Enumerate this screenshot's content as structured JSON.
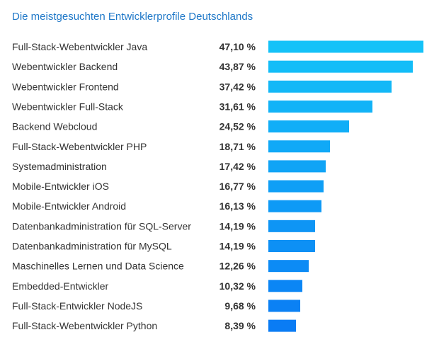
{
  "chart_data": {
    "type": "bar",
    "orientation": "horizontal",
    "title": "Die meistgesuchten Entwicklerprofile Deutschlands",
    "categories": [
      "Full-Stack-Webentwickler Java",
      "Webentwickler Backend",
      "Webentwickler Frontend",
      "Webentwickler Full-Stack",
      "Backend Webcloud",
      "Full-Stack-Webentwickler PHP",
      "Systemadministration",
      "Mobile-Entwickler iOS",
      "Mobile-Entwickler Android",
      "Datenbankadministration für SQL-Server",
      "Datenbankadministration für MySQL",
      "Maschinelles Lernen und Data Science",
      "Embedded-Entwickler",
      "Full-Stack-Entwickler NodeJS",
      "Full-Stack-Webentwickler Python"
    ],
    "values": [
      47.1,
      43.87,
      37.42,
      31.61,
      24.52,
      18.71,
      17.42,
      16.77,
      16.13,
      14.19,
      14.19,
      12.26,
      10.32,
      9.68,
      8.39
    ],
    "value_labels": [
      "47,10 %",
      "43,87 %",
      "37,42 %",
      "31,61 %",
      "24,52 %",
      "18,71 %",
      "17,42 %",
      "16,77 %",
      "16,13 %",
      "14,19 %",
      "14,19 %",
      "12,26 %",
      "10,32 %",
      "9,68 %",
      "8,39 %"
    ],
    "colors": {
      "top": "#14c2f8",
      "bottom": "#0a7cf4",
      "title": "#1f78c8"
    },
    "grid": false,
    "legend": "none"
  }
}
